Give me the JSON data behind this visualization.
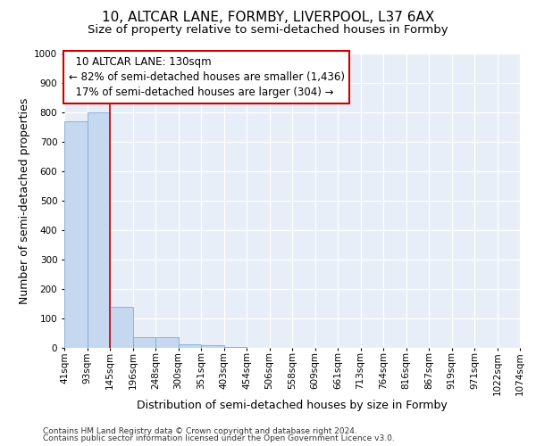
{
  "title": "10, ALTCAR LANE, FORMBY, LIVERPOOL, L37 6AX",
  "subtitle": "Size of property relative to semi-detached houses in Formby",
  "xlabel": "Distribution of semi-detached houses by size in Formby",
  "ylabel": "Number of semi-detached properties",
  "footer1": "Contains HM Land Registry data © Crown copyright and database right 2024.",
  "footer2": "Contains public sector information licensed under the Open Government Licence v3.0.",
  "bin_labels": [
    "41sqm",
    "93sqm",
    "145sqm",
    "196sqm",
    "248sqm",
    "300sqm",
    "351sqm",
    "403sqm",
    "454sqm",
    "506sqm",
    "558sqm",
    "609sqm",
    "661sqm",
    "713sqm",
    "764sqm",
    "816sqm",
    "867sqm",
    "919sqm",
    "971sqm",
    "1022sqm",
    "1074sqm"
  ],
  "bar_heights": [
    770,
    800,
    140,
    35,
    35,
    12,
    8,
    2,
    1,
    1,
    1,
    0,
    0,
    0,
    0,
    0,
    0,
    0,
    0,
    0
  ],
  "bar_color": "#c5d8f0",
  "bar_edge_color": "#7aadd4",
  "property_label": "10 ALTCAR LANE: 130sqm",
  "smaller_pct": 82,
  "smaller_count": 1436,
  "larger_pct": 17,
  "larger_count": 304,
  "vline_x": 2,
  "annotation_line_color": "#cc0000",
  "annotation_box_edge_color": "#cc0000",
  "ylim": [
    0,
    1000
  ],
  "yticks": [
    0,
    100,
    200,
    300,
    400,
    500,
    600,
    700,
    800,
    900,
    1000
  ],
  "bg_color": "#e8eef8",
  "grid_color": "#ffffff",
  "title_fontsize": 11,
  "subtitle_fontsize": 9.5,
  "axis_label_fontsize": 9,
  "tick_fontsize": 7.5,
  "annot_fontsize": 8.5,
  "footer_fontsize": 6.5
}
